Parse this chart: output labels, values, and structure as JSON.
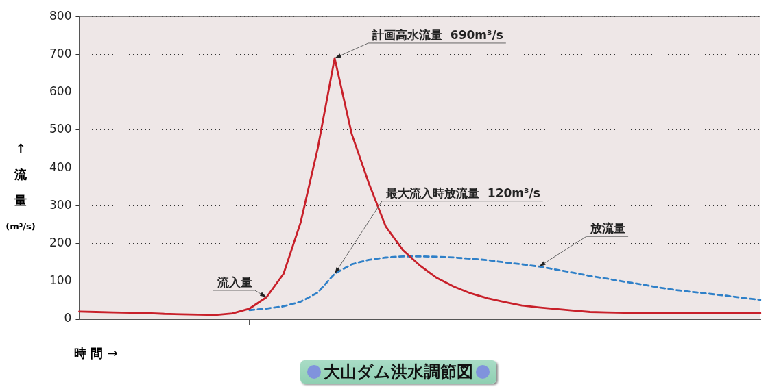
{
  "chart_data": {
    "type": "line",
    "title": "大山ダム洪水調節図",
    "xlabel": "時 間 →",
    "ylabel": "↑流量(m³/s)",
    "categories": [
      null,
      null,
      null,
      null,
      null,
      null,
      null,
      null,
      null,
      null,
      null,
      null,
      null,
      null,
      null,
      null,
      null,
      null,
      null,
      null,
      null,
      null,
      null,
      null,
      null,
      null,
      null,
      null,
      null,
      null,
      null,
      null,
      null,
      null,
      null,
      null,
      null,
      null,
      null,
      null,
      null
    ],
    "ylim": [
      0,
      800
    ],
    "yticks": [
      0,
      100,
      200,
      300,
      400,
      500,
      600,
      700,
      800
    ],
    "tick_labels": "y",
    "grid": "y",
    "marker": "none",
    "series": [
      {
        "name": "流入量",
        "color": "#c8202a",
        "line_style": "solid",
        "values": [
          20,
          19,
          18,
          17,
          16,
          14,
          13,
          12,
          11,
          15,
          28,
          58,
          120,
          255,
          450,
          690,
          490,
          360,
          245,
          183,
          142,
          109,
          86,
          68,
          55,
          45,
          36,
          31,
          27,
          23,
          19,
          18,
          17,
          17,
          16,
          16,
          16,
          16,
          16,
          16,
          16
        ]
      },
      {
        "name": "放流量",
        "color": "#2f80c8",
        "line_style": "dashed",
        "values": [
          null,
          null,
          null,
          null,
          null,
          null,
          null,
          null,
          null,
          null,
          24,
          28,
          34,
          46,
          70,
          120,
          145,
          157,
          163,
          166,
          166,
          165,
          163,
          160,
          156,
          150,
          145,
          139,
          131,
          123,
          114,
          107,
          99,
          92,
          84,
          77,
          72,
          67,
          62,
          56,
          51
        ]
      }
    ],
    "annotations": [
      "計画高水流量  690m³/s",
      "最大流入時放流量  120m³/s"
    ]
  }
}
